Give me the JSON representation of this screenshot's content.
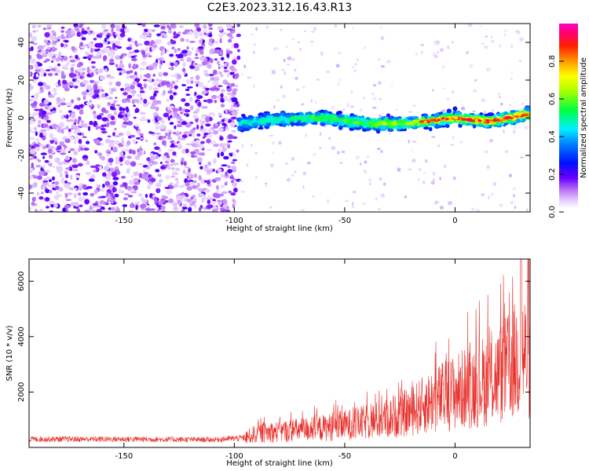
{
  "title": "C2E3.2023.312.16.43.R13",
  "colors": {
    "snr_line": "#e8302a",
    "axis": "#000000",
    "colormap": [
      "#ffffff",
      "#e9d9fb",
      "#c79af4",
      "#8e2bf0",
      "#5a00ff",
      "#0008ff",
      "#0070ff",
      "#00e5ff",
      "#00ff5a",
      "#a0ff00",
      "#ffff00",
      "#ff9a00",
      "#ff2a00",
      "#ff007a",
      "#ff00d0"
    ]
  },
  "chart_data": [
    {
      "type": "heatmap",
      "title": "C2E3.2023.312.16.43.R13",
      "xlabel": "Height of straight line (km)",
      "ylabel": "Frequency (Hz)",
      "xlim": [
        -193,
        34
      ],
      "ylim": [
        -50,
        50
      ],
      "x_ticks": [
        -150,
        -100,
        -50,
        0
      ],
      "y_ticks": [
        -40,
        -20,
        0,
        20,
        40
      ],
      "colorbar": {
        "label": "Normalized spectral amplitude",
        "range": [
          0,
          1
        ],
        "ticks": [
          0.0,
          0.2,
          0.4,
          0.6,
          0.8
        ]
      },
      "band_center_hz": [
        {
          "x": -98,
          "y": -3
        },
        {
          "x": -80,
          "y": -1
        },
        {
          "x": -60,
          "y": 0
        },
        {
          "x": -40,
          "y": -3
        },
        {
          "x": -20,
          "y": -3
        },
        {
          "x": 0,
          "y": 0
        },
        {
          "x": 15,
          "y": -2
        },
        {
          "x": 25,
          "y": 0
        },
        {
          "x": 34,
          "y": 2
        }
      ],
      "noise_region_x": [
        -193,
        -98
      ],
      "grid": false
    },
    {
      "type": "line",
      "xlabel": "Height of straight line (km)",
      "ylabel": "SNR (10 * v/v)",
      "xlim": [
        -193,
        34
      ],
      "ylim": [
        0,
        6800
      ],
      "x_ticks": [
        -150,
        -100,
        -50,
        0
      ],
      "y_ticks": [
        2000,
        4000,
        6000
      ],
      "envelope": [
        {
          "x": -193,
          "y": 300
        },
        {
          "x": -150,
          "y": 300
        },
        {
          "x": -110,
          "y": 280
        },
        {
          "x": -95,
          "y": 350
        },
        {
          "x": -90,
          "y": 500
        },
        {
          "x": -75,
          "y": 600
        },
        {
          "x": -60,
          "y": 700
        },
        {
          "x": -45,
          "y": 850
        },
        {
          "x": -30,
          "y": 1050
        },
        {
          "x": -20,
          "y": 1300
        },
        {
          "x": -10,
          "y": 1700
        },
        {
          "x": 0,
          "y": 2000
        },
        {
          "x": 10,
          "y": 2300
        },
        {
          "x": 20,
          "y": 2600
        },
        {
          "x": 26,
          "y": 3000
        },
        {
          "x": 30,
          "y": 3400
        },
        {
          "x": 34,
          "y": 3200
        }
      ],
      "peak": {
        "x": 30,
        "y": 6800
      },
      "grid": false
    }
  ]
}
